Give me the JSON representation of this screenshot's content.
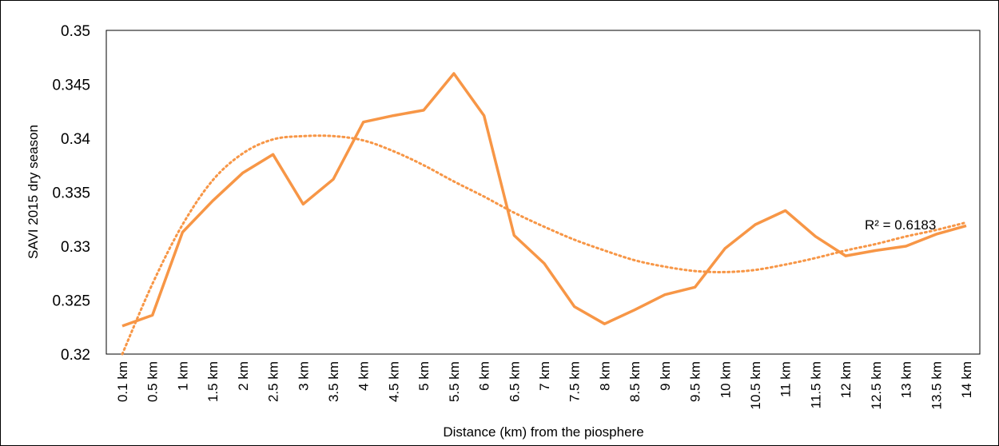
{
  "chart_data": {
    "type": "line",
    "title": "",
    "xlabel": "Distance (km) from the piosphere",
    "ylabel": "SAVI 2015 dry season",
    "categories": [
      "0.1 km",
      "0.5 km",
      "1 km",
      "1.5 km",
      "2 km",
      "2.5 km",
      "3 km",
      "3.5 km",
      "4 km",
      "4.5 km",
      "5 km",
      "5.5 km",
      "6 km",
      "6.5 km",
      "7 km",
      "7.5 km",
      "8 km",
      "8.5 km",
      "9 km",
      "9.5 km",
      "10 km",
      "10.5 km",
      "11 km",
      "11.5 km",
      "12 km",
      "12.5 km",
      "13 km",
      "13.5 km",
      "14 km"
    ],
    "series": [
      {
        "values": [
          0.3226,
          0.3236,
          0.3313,
          0.3342,
          0.3368,
          0.3385,
          0.3339,
          0.3362,
          0.3415,
          0.3421,
          0.3426,
          0.346,
          0.3421,
          0.331,
          0.3284,
          0.3244,
          0.3228,
          0.3241,
          0.3255,
          0.3262,
          0.3298,
          0.332,
          0.3333,
          0.3309,
          0.3291,
          0.3296,
          0.33,
          0.3311,
          0.3319
        ],
        "color": "#f79646"
      }
    ],
    "trendline": {
      "type": "polynomial",
      "values": [
        0.3194,
        0.3265,
        0.332,
        0.3361,
        0.3386,
        0.3399,
        0.3402,
        0.3402,
        0.3398,
        0.3388,
        0.3375,
        0.336,
        0.3346,
        0.3331,
        0.3318,
        0.3306,
        0.3296,
        0.3287,
        0.3281,
        0.3277,
        0.3276,
        0.3278,
        0.3283,
        0.3289,
        0.3296,
        0.3302,
        0.3309,
        0.3315,
        0.3322
      ],
      "label": "R² = 0.6183",
      "color": "#f79646"
    },
    "yticks": [
      "0.32",
      "0.325",
      "0.33",
      "0.335",
      "0.34",
      "0.345",
      "0.35"
    ],
    "ylim": [
      0.32,
      0.35
    ],
    "grid": false,
    "legend": "none"
  }
}
